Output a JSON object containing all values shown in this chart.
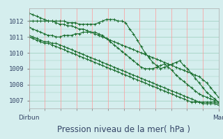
{
  "title": "Pression niveau de la mer( hPa )",
  "xlabel_left": "Dirbun",
  "xlabel_right": "Mar",
  "ylim": [
    1006.5,
    1012.8
  ],
  "background_color": "#d5eeee",
  "grid_color_h": "#99ccbb",
  "grid_color_v": "#ff9999",
  "line_color": "#1a6e2e",
  "n_points": 50,
  "series": [
    [
      1012.5,
      1012.4,
      1012.3,
      1012.2,
      1012.1,
      1012.0,
      1012.0,
      1011.9,
      1011.8,
      1011.8,
      1011.7,
      1011.7,
      1011.6,
      1011.5,
      1011.5,
      1011.4,
      1011.3,
      1011.2,
      1011.1,
      1011.0,
      1010.9,
      1010.8,
      1010.7,
      1010.6,
      1010.5,
      1010.4,
      1010.3,
      1010.2,
      1010.1,
      1010.0,
      1009.9,
      1009.8,
      1009.7,
      1009.6,
      1009.5,
      1009.4,
      1009.3,
      1009.2,
      1009.1,
      1009.0,
      1008.9,
      1008.8,
      1008.7,
      1008.6,
      1008.5,
      1008.3,
      1008.1,
      1007.8,
      1007.5,
      1007.2
    ],
    [
      1012.0,
      1012.0,
      1012.0,
      1012.0,
      1012.0,
      1012.0,
      1012.0,
      1012.0,
      1012.0,
      1012.0,
      1011.9,
      1011.9,
      1011.9,
      1011.8,
      1011.8,
      1011.8,
      1011.8,
      1011.8,
      1011.9,
      1012.0,
      1012.1,
      1012.1,
      1012.1,
      1012.0,
      1012.0,
      1011.9,
      1011.5,
      1011.2,
      1010.8,
      1010.4,
      1010.0,
      1009.7,
      1009.4,
      1009.2,
      1009.0,
      1009.1,
      1009.2,
      1009.3,
      1009.4,
      1009.5,
      1009.2,
      1009.0,
      1008.7,
      1008.4,
      1008.1,
      1007.8,
      1007.5,
      1007.3,
      1007.1,
      1006.9
    ],
    [
      1011.6,
      1011.5,
      1011.4,
      1011.3,
      1011.2,
      1011.1,
      1011.1,
      1011.0,
      1011.0,
      1011.1,
      1011.1,
      1011.1,
      1011.2,
      1011.2,
      1011.3,
      1011.3,
      1011.3,
      1011.3,
      1011.2,
      1011.1,
      1010.9,
      1010.7,
      1010.5,
      1010.3,
      1010.1,
      1009.9,
      1009.7,
      1009.5,
      1009.3,
      1009.1,
      1009.0,
      1009.0,
      1009.0,
      1009.1,
      1009.2,
      1009.3,
      1009.1,
      1008.9,
      1008.6,
      1008.4,
      1008.2,
      1008.0,
      1007.8,
      1007.6,
      1007.4,
      1007.3,
      1007.2,
      1007.1,
      1007.0,
      1006.9
    ],
    [
      1011.1,
      1011.0,
      1010.9,
      1010.8,
      1010.7,
      1010.7,
      1010.6,
      1010.6,
      1010.5,
      1010.4,
      1010.3,
      1010.2,
      1010.1,
      1010.0,
      1009.9,
      1009.8,
      1009.7,
      1009.6,
      1009.5,
      1009.4,
      1009.3,
      1009.2,
      1009.1,
      1009.0,
      1008.9,
      1008.8,
      1008.7,
      1008.6,
      1008.5,
      1008.4,
      1008.3,
      1008.2,
      1008.1,
      1008.0,
      1007.9,
      1007.8,
      1007.7,
      1007.6,
      1007.5,
      1007.4,
      1007.3,
      1007.2,
      1007.1,
      1007.0,
      1006.9,
      1006.9,
      1006.9,
      1006.9,
      1006.9,
      1006.8
    ],
    [
      1011.0,
      1010.9,
      1010.8,
      1010.7,
      1010.6,
      1010.6,
      1010.5,
      1010.4,
      1010.3,
      1010.2,
      1010.1,
      1010.0,
      1009.9,
      1009.8,
      1009.7,
      1009.6,
      1009.5,
      1009.4,
      1009.3,
      1009.2,
      1009.1,
      1009.0,
      1008.9,
      1008.8,
      1008.7,
      1008.6,
      1008.5,
      1008.4,
      1008.3,
      1008.2,
      1008.1,
      1008.0,
      1007.9,
      1007.8,
      1007.7,
      1007.6,
      1007.5,
      1007.4,
      1007.3,
      1007.2,
      1007.1,
      1007.0,
      1006.9,
      1006.9,
      1006.9,
      1006.8,
      1006.8,
      1006.8,
      1006.8,
      1006.7
    ]
  ],
  "yticks": [
    1007,
    1008,
    1009,
    1010,
    1011,
    1012
  ],
  "n_vgrid": 13,
  "title_fontsize": 8.5,
  "tick_fontsize": 6.5,
  "figsize": [
    3.2,
    2.0
  ],
  "dpi": 100
}
